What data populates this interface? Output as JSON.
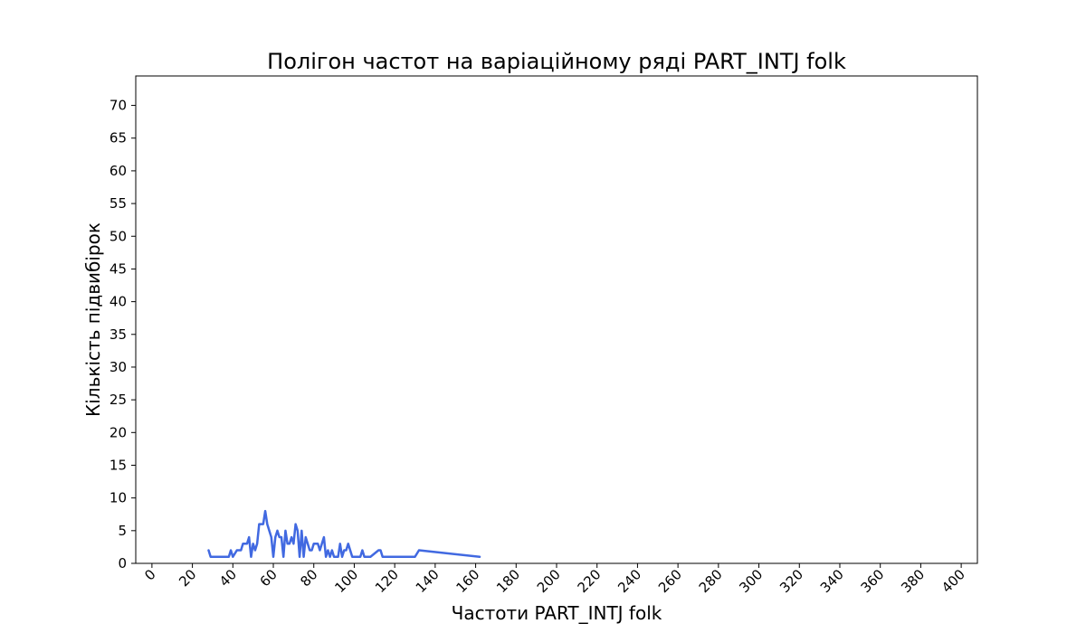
{
  "chart_data": {
    "type": "line",
    "title": "Полігон частот на варіаційному ряді PART_INTJ folk",
    "xlabel": "Частоти PART_INTJ folk",
    "ylabel": "Кількість підвибірок",
    "xlim": [
      -8,
      408
    ],
    "ylim": [
      0,
      74.5
    ],
    "xticks": [
      0,
      20,
      40,
      60,
      80,
      100,
      120,
      140,
      160,
      180,
      200,
      220,
      240,
      260,
      280,
      300,
      320,
      340,
      360,
      380,
      400
    ],
    "yticks": [
      0,
      5,
      10,
      15,
      20,
      25,
      30,
      35,
      40,
      45,
      50,
      55,
      60,
      65,
      70
    ],
    "grid": false,
    "series": [
      {
        "color": "#4169e1",
        "x": [
          28,
          29,
          36,
          38,
          39,
          40,
          42,
          44,
          45,
          46,
          47,
          48,
          49,
          50,
          51,
          52,
          53,
          54,
          55,
          56,
          57,
          58,
          59,
          60,
          61,
          62,
          63,
          64,
          65,
          66,
          67,
          68,
          69,
          70,
          71,
          72,
          73,
          74,
          75,
          76,
          77,
          78,
          79,
          80,
          82,
          83,
          84,
          85,
          86,
          87,
          88,
          89,
          90,
          91,
          92,
          93,
          94,
          95,
          96,
          97,
          98,
          99,
          100,
          101,
          102,
          103,
          104,
          105,
          106,
          107,
          108,
          110,
          112,
          113,
          114,
          120,
          125,
          130,
          132,
          162
        ],
        "y": [
          2,
          1,
          1,
          1,
          2,
          1,
          2,
          2,
          3,
          3,
          3,
          4,
          1,
          3,
          2,
          3,
          6,
          6,
          6,
          8,
          6,
          5,
          4,
          1,
          4,
          5,
          4,
          4,
          1,
          5,
          3,
          3,
          4,
          3,
          6,
          5,
          1,
          5,
          1,
          4,
          3,
          2,
          2,
          3,
          3,
          2,
          3,
          4,
          1,
          2,
          1,
          2,
          1,
          1,
          1,
          3,
          1,
          2,
          2,
          3,
          2,
          1,
          1,
          1,
          1,
          1,
          2,
          1,
          1,
          1,
          1,
          1.5,
          2,
          2,
          1,
          1,
          1,
          1,
          2,
          1
        ]
      }
    ]
  }
}
